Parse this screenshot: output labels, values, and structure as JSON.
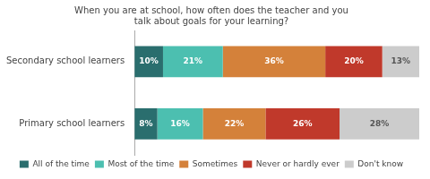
{
  "chart_data": {
    "type": "bar",
    "orientation": "horizontal",
    "stacked": true,
    "title": "When you are at school, how often does the teacher and you\ntalk about goals for your learning?",
    "categories": [
      "Secondary school learners",
      "Primary school learners"
    ],
    "series": [
      {
        "name": "All of the time",
        "color": "#2a6e6e",
        "values": [
          10,
          8
        ],
        "value_labels": [
          "10%",
          "8%"
        ]
      },
      {
        "name": "Most of the time",
        "color": "#4cbfb0",
        "values": [
          21,
          16
        ],
        "value_labels": [
          "21%",
          "16%"
        ]
      },
      {
        "name": "Sometimes",
        "color": "#d4813a",
        "values": [
          36,
          22
        ],
        "value_labels": [
          "36%",
          "22%"
        ]
      },
      {
        "name": "Never or hardly ever",
        "color": "#c0392b",
        "values": [
          20,
          26
        ],
        "value_labels": [
          "20%",
          "26%"
        ]
      },
      {
        "name": "Don't know",
        "color": "#cccccc",
        "values": [
          13,
          28
        ],
        "value_labels": [
          "13%",
          "28%"
        ]
      }
    ],
    "xlim": [
      0,
      100
    ],
    "data_labels": true,
    "tick_labels": "y",
    "grid": false,
    "legend": "bottom"
  }
}
